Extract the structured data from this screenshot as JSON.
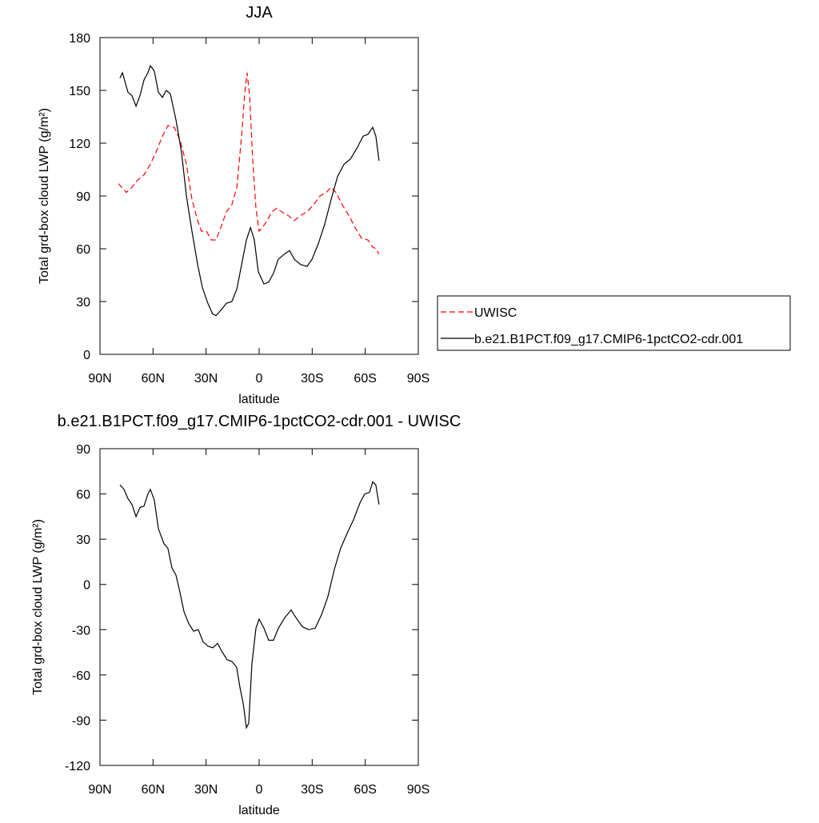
{
  "chart_data": [
    {
      "type": "line",
      "title": "JJA",
      "xlabel": "latitude",
      "ylabel": "Total grd-box cloud LWP (g/m²)",
      "xlim": [
        90,
        -90
      ],
      "xticks": [
        {
          "value": 90,
          "label": "90N"
        },
        {
          "value": 60,
          "label": "60N"
        },
        {
          "value": 30,
          "label": "30N"
        },
        0,
        {
          "value": -30,
          "label": "30S"
        },
        {
          "value": -60,
          "label": "60S"
        },
        {
          "value": -90,
          "label": "90S"
        }
      ],
      "ylim": [
        0,
        180
      ],
      "yticks": [
        0,
        30,
        60,
        90,
        120,
        150,
        180
      ],
      "legend": "right",
      "series": [
        {
          "name": "UWISC",
          "color": "#ff0000",
          "dash": true,
          "x": [
            79.6,
            77.8,
            75.1,
            71.9,
            68.7,
            65.1,
            61.5,
            58.3,
            54.7,
            51.6,
            48.0,
            44.8,
            41.1,
            38.0,
            34.8,
            32.6,
            29.8,
            27.1,
            24.4,
            21.7,
            18.5,
            15.4,
            12.6,
            9.9,
            8.1,
            6.8,
            5.4,
            3.6,
            1.8,
            0,
            -1.8,
            -4.5,
            -7.2,
            -9.9,
            -12.6,
            -16.3,
            -19.9,
            -23.5,
            -27.1,
            -30.8,
            -34.4,
            -38.0,
            -40.7,
            -43.4,
            -47.0,
            -50.7,
            -54.3,
            -57.9,
            -61.5,
            -64.2,
            -66.0,
            -67.8
          ],
          "values": [
            97,
            95,
            92,
            95,
            99,
            102,
            108,
            115,
            124,
            130,
            129,
            122,
            108,
            88,
            76,
            70,
            70,
            65,
            65,
            72,
            81,
            85,
            95,
            124,
            149,
            160,
            147,
            110,
            83,
            70,
            72,
            76,
            81,
            83,
            81,
            79,
            76,
            79,
            81,
            85,
            90,
            92,
            95,
            92,
            85,
            79,
            72,
            66,
            65,
            61,
            60,
            57
          ]
        },
        {
          "name": "b.e21.B1PCT.f09_g17.CMIP6-1pctCO2-cdr.001",
          "color": "#000000",
          "dash": false,
          "x": [
            78.7,
            77.3,
            74.2,
            71.9,
            69.6,
            67.4,
            65.1,
            62.9,
            61.5,
            59.3,
            57.0,
            54.7,
            52.5,
            50.2,
            47.0,
            43.9,
            41.1,
            38.0,
            34.8,
            32.1,
            29.0,
            26.3,
            24.4,
            21.7,
            18.5,
            15.4,
            12.6,
            9.9,
            7.2,
            4.9,
            2.7,
            0.5,
            -2.7,
            -5.4,
            -8.1,
            -10.8,
            -14.4,
            -17.2,
            -19.9,
            -23.5,
            -27.1,
            -29.9,
            -33.5,
            -37.1,
            -40.7,
            -44.3,
            -48.0,
            -51.6,
            -55.2,
            -58.8,
            -61.5,
            -64.2,
            -66.0,
            -67.8
          ],
          "values": [
            157,
            160,
            149,
            147,
            141,
            147,
            156,
            160,
            164,
            161,
            149,
            146,
            150,
            148,
            133,
            115,
            90,
            70,
            51,
            38,
            29,
            23,
            22,
            25,
            29,
            30,
            37,
            51,
            65,
            72,
            65,
            47,
            40,
            41,
            46,
            54,
            57,
            59,
            54,
            51,
            50,
            54,
            63,
            74,
            88,
            101,
            108,
            111,
            117,
            124,
            125,
            129,
            124,
            110
          ]
        }
      ]
    },
    {
      "type": "line",
      "title": "b.e21.B1PCT.f09_g17.CMIP6-1pctCO2-cdr.001 - UWISC",
      "xlabel": "latitude",
      "ylabel": "Total grd-box cloud LWP (g/m²)",
      "xlim": [
        90,
        -90
      ],
      "xticks": [
        {
          "value": 90,
          "label": "90N"
        },
        {
          "value": 60,
          "label": "60N"
        },
        {
          "value": 30,
          "label": "30N"
        },
        0,
        {
          "value": -30,
          "label": "30S"
        },
        {
          "value": -60,
          "label": "60S"
        },
        {
          "value": -90,
          "label": "90S"
        }
      ],
      "ylim": [
        -120,
        90
      ],
      "yticks": [
        -120,
        -90,
        -60,
        -30,
        0,
        30,
        60,
        90
      ],
      "series": [
        {
          "color": "#000000",
          "dash": false,
          "x": [
            78.7,
            76.4,
            74.2,
            71.9,
            69.6,
            67.4,
            65.1,
            62.9,
            61.5,
            59.3,
            57.0,
            53.8,
            51.6,
            49.3,
            47.0,
            44.8,
            42.5,
            39.8,
            37.1,
            34.4,
            31.7,
            28.9,
            26.2,
            23.5,
            20.8,
            18.1,
            15.4,
            12.7,
            10.9,
            9.0,
            7.2,
            5.9,
            4.1,
            1.8,
            0,
            -2.7,
            -5.4,
            -8.1,
            -10.9,
            -14.5,
            -18.1,
            -20.8,
            -24.4,
            -28.0,
            -31.7,
            -35.3,
            -38.9,
            -42.5,
            -46.1,
            -49.8,
            -53.4,
            -57.0,
            -59.7,
            -62.4,
            -64.2,
            -66.0,
            -67.8
          ],
          "values": [
            66,
            63,
            57,
            53,
            45,
            51,
            52,
            60,
            63,
            56,
            37,
            27,
            24,
            11,
            6,
            -5,
            -18,
            -26,
            -31,
            -30,
            -38,
            -41,
            -42,
            -39,
            -45,
            -50,
            -51,
            -55,
            -68,
            -79,
            -95,
            -92,
            -53,
            -29,
            -23,
            -29,
            -37,
            -37,
            -29,
            -22,
            -17,
            -22,
            -28,
            -30,
            -29,
            -20,
            -8,
            10,
            24,
            34,
            43,
            54,
            60,
            61,
            68,
            66,
            53
          ]
        }
      ]
    }
  ]
}
